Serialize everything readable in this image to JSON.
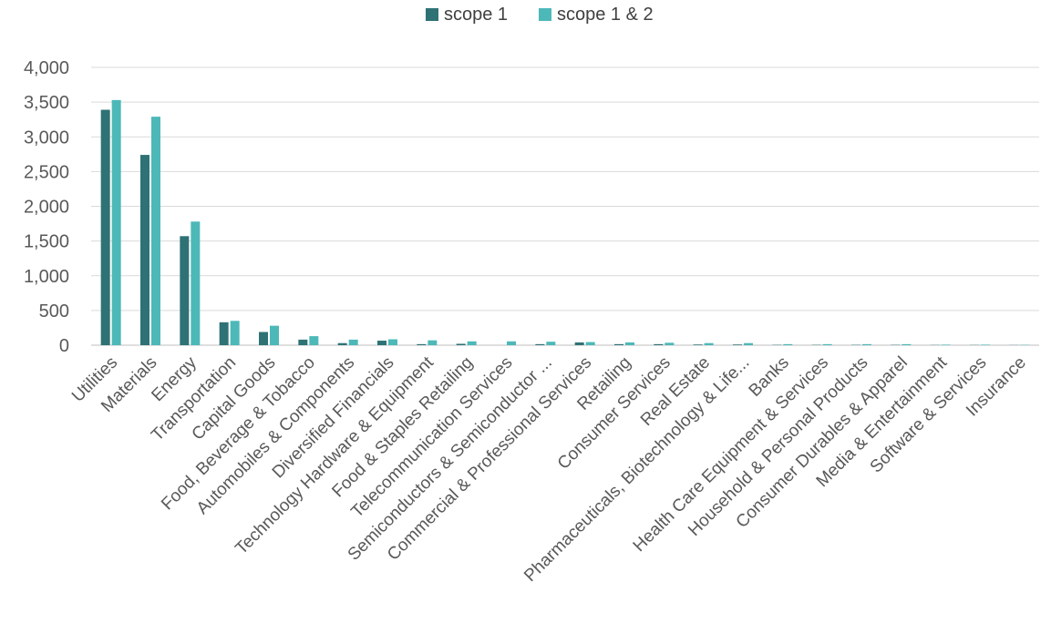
{
  "chart_data": {
    "type": "bar",
    "categories": [
      "Utilities",
      "Materials",
      "Energy",
      "Transportation",
      "Capital Goods",
      "Food, Beverage & Tobacco",
      "Automobiles & Components",
      "Diversified Financials",
      "Technology Hardware & Equipment",
      "Food & Staples Retailing",
      "Telecommunication Services",
      "Semiconductors & Semiconductor ...",
      "Commercial & Professional Services",
      "Retailing",
      "Consumer Services",
      "Real Estate",
      "Pharmaceuticals, Biotechnology & Life...",
      "Banks",
      "Health Care Equipment & Services",
      "Household & Personal Products",
      "Consumer Durables & Apparel",
      "Media & Entertainment",
      "Software & Services",
      "Insurance"
    ],
    "series": [
      {
        "name": "scope 1",
        "color": "#2e7275",
        "values": [
          3390,
          2740,
          1570,
          330,
          190,
          80,
          30,
          65,
          15,
          20,
          0,
          15,
          40,
          15,
          15,
          10,
          10,
          5,
          5,
          5,
          5,
          3,
          3,
          2
        ]
      },
      {
        "name": "scope 1 & 2",
        "color": "#4db8b8",
        "values": [
          3530,
          3290,
          1780,
          350,
          280,
          130,
          80,
          85,
          70,
          55,
          55,
          50,
          45,
          40,
          35,
          30,
          30,
          15,
          15,
          15,
          15,
          8,
          8,
          5
        ]
      }
    ],
    "yticks": [
      "0",
      "500",
      "1,000",
      "1,500",
      "2,000",
      "2,500",
      "3,000",
      "3,500",
      "4,000"
    ],
    "ylim": [
      0,
      4000
    ],
    "grid": true,
    "legend_position": "top-center"
  }
}
